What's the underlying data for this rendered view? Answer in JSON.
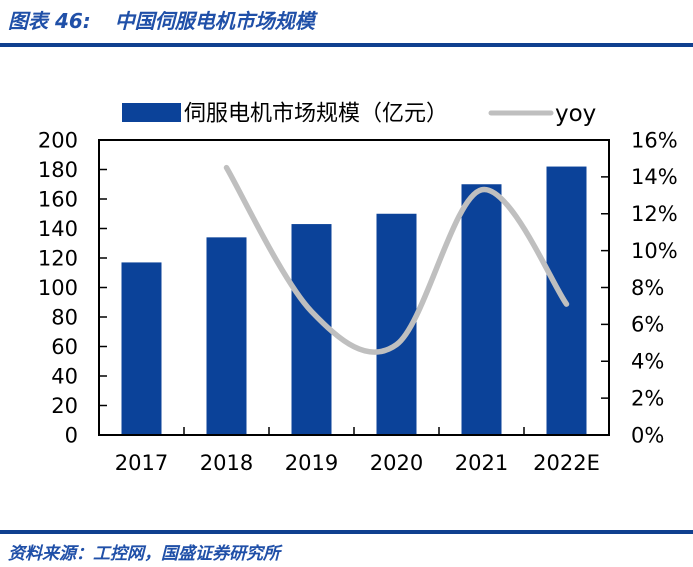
{
  "header": {
    "label": "图表 46:",
    "title": "中国伺服电机市场规模"
  },
  "footer": {
    "source": "资料来源：工控网，国盛证券研究所"
  },
  "colors": {
    "bar": "#0B4299",
    "line": "#BFBFBF",
    "accent_rule": "#10408F",
    "heading_text": "#2050A8",
    "axis_text": "#000000",
    "frame": "#000000"
  },
  "chart_data": {
    "type": "bar",
    "title": "中国伺服电机市场规模",
    "categories": [
      "2017",
      "2018",
      "2019",
      "2020",
      "2021",
      "2022E"
    ],
    "series": [
      {
        "name": "伺服电机市场规模（亿元）",
        "type": "bar",
        "axis": "left",
        "values": [
          117,
          134,
          143,
          150,
          170,
          182
        ]
      },
      {
        "name": "yoy",
        "type": "line",
        "axis": "right",
        "unit": "%",
        "values": [
          null,
          14.5,
          6.7,
          4.9,
          13.3,
          7.1
        ]
      }
    ],
    "left_axis": {
      "min": 0,
      "max": 200,
      "step": 20,
      "ticks": [
        0,
        20,
        40,
        60,
        80,
        100,
        120,
        140,
        160,
        180,
        200
      ]
    },
    "right_axis": {
      "min": 0,
      "max": 16,
      "step": 2,
      "format": "percent",
      "ticks": [
        "0%",
        "2%",
        "4%",
        "6%",
        "8%",
        "10%",
        "12%",
        "14%",
        "16%"
      ]
    },
    "legend_position": "top",
    "grid": false,
    "xlabel": "",
    "ylabel": ""
  }
}
